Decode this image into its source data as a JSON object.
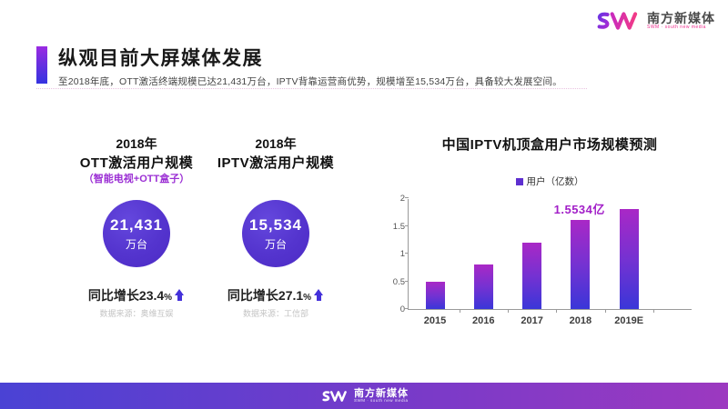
{
  "brand": {
    "name_cn": "南方新媒体",
    "tagline": "SWM · south new media",
    "accent_purple": "#6a2fe0",
    "accent_pink": "#ee2f8e"
  },
  "header": {
    "title": "纵观目前大屏媒体发展",
    "subtitle": "至2018年底，OTT激活终端规模已达21,431万台，IPTV背靠运营商优势，规模增至15,534万台，具备较大发展空间。"
  },
  "panels": [
    {
      "year": "2018年",
      "title": "OTT激活用户规模",
      "note": "（智能电视+OTT盒子）",
      "value": "21,431",
      "unit": "万台",
      "growth_prefix": "同比增长",
      "growth_value": "23.4",
      "growth_unit": "%",
      "source": "数据来源：奥维互娱",
      "circle_color": "#5434ce"
    },
    {
      "year": "2018年",
      "title": "IPTV激活用户规模",
      "note": "",
      "value": "15,534",
      "unit": "万台",
      "growth_prefix": "同比增长",
      "growth_value": "27.1",
      "growth_unit": "%",
      "source": "数据来源：工信部",
      "circle_color": "#5434ce"
    }
  ],
  "chart_data": {
    "type": "bar",
    "title": "中国IPTV机顶盒用户市场规模预测",
    "legend": "用户（亿数）",
    "legend_position": "top",
    "categories": [
      "2015",
      "2016",
      "2017",
      "2018",
      "2019E"
    ],
    "values": [
      0.5,
      0.8,
      1.2,
      1.6,
      1.8
    ],
    "annotation": {
      "text": "1.5534亿",
      "category": "2018",
      "color": "#a21fc8"
    },
    "xlabel": "",
    "ylabel": "",
    "ylim": [
      0,
      2
    ],
    "yticks": [
      0,
      0.5,
      1,
      1.5,
      2
    ],
    "grid": false,
    "bar_gradient_top": "#a928c6",
    "bar_gradient_bottom": "#3a36d8",
    "legend_color": "#5e2fd0"
  },
  "footer": {
    "brand": "南方新媒体",
    "tagline": "SWM · south new media"
  }
}
